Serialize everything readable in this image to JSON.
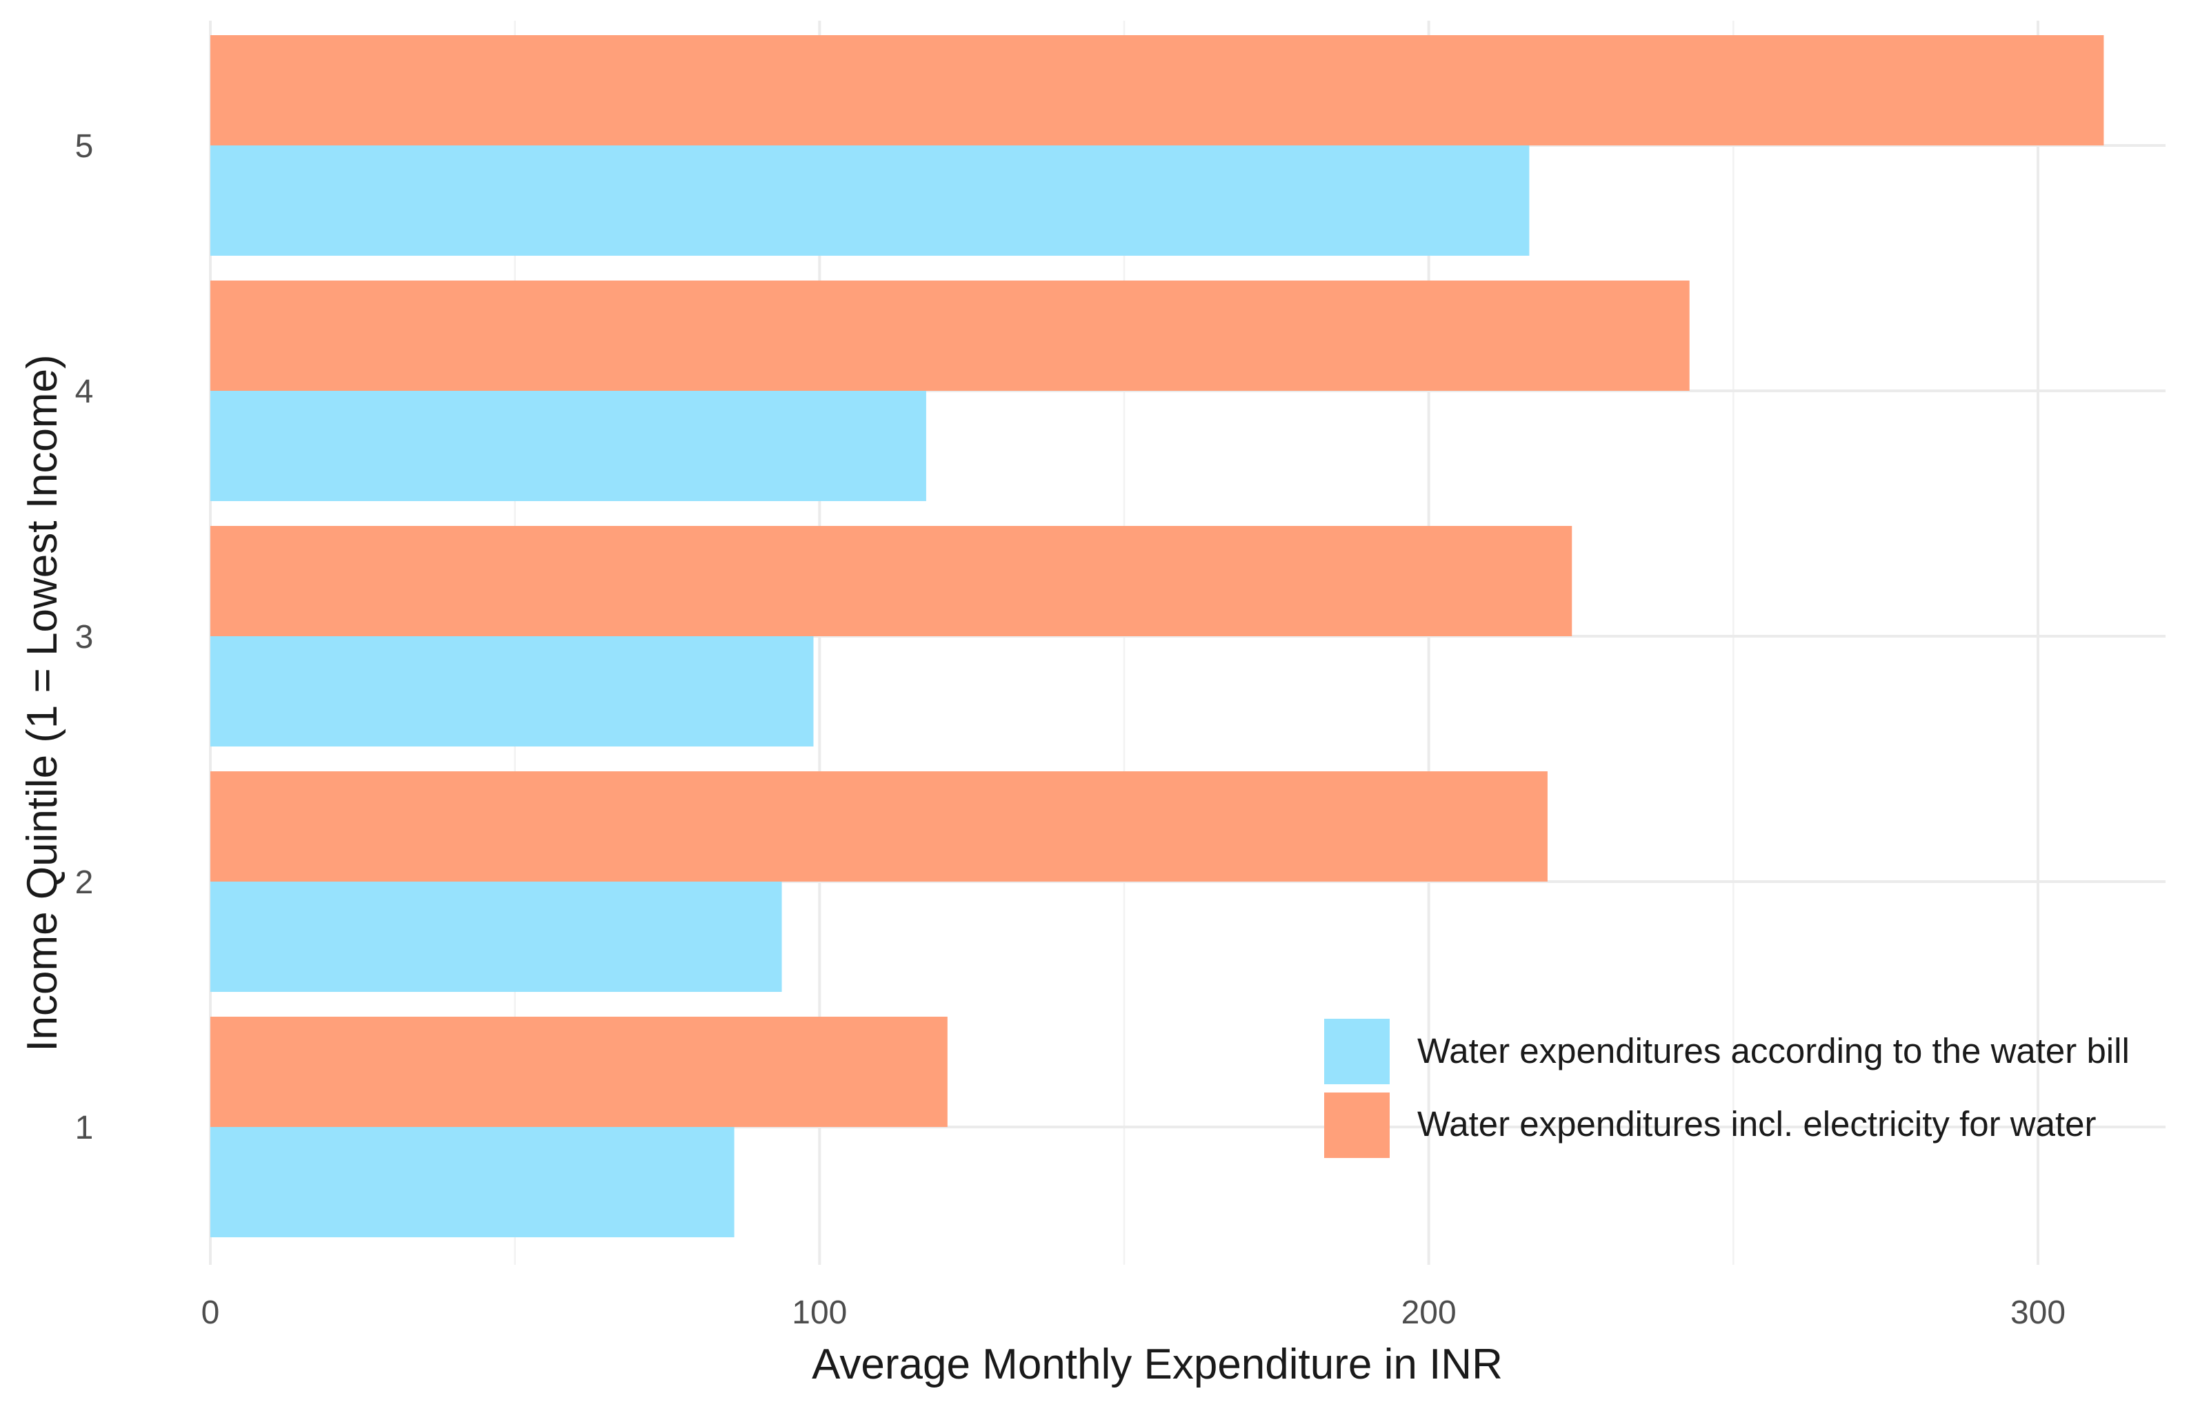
{
  "chart_data": {
    "type": "bar",
    "orientation": "horizontal",
    "categories": [
      "1",
      "2",
      "3",
      "4",
      "5"
    ],
    "series": [
      {
        "name": "Water expenditures according to the water bill",
        "color": "#97E2FD",
        "values": [
          86,
          93.8,
          99,
          117.5,
          216.5
        ]
      },
      {
        "name": "Water expenditures incl. electricity for water",
        "color": "#FFA07A",
        "values": [
          121,
          219.5,
          223.5,
          242.8,
          310.8
        ]
      }
    ],
    "xlabel": "Average Monthly Expenditure in INR",
    "ylabel": "Income Quintile (1 = Lowest Income)",
    "xticks": [
      0,
      100,
      200,
      300
    ],
    "xlim": [
      0,
      320
    ],
    "grid": true,
    "legend_position": "bottom-right"
  }
}
